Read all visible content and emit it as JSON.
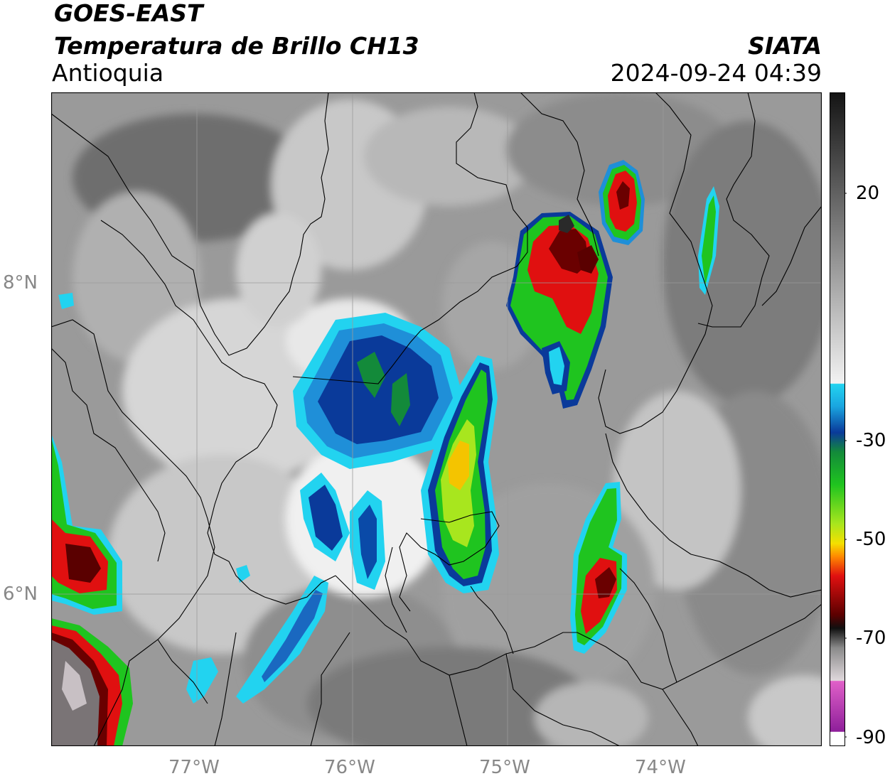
{
  "header": {
    "satellite": "GOES-EAST",
    "product": "Temperatura de Brillo CH13",
    "region": "Antioquia",
    "brand": "SIATA",
    "timestamp": "2024-09-24 04:39"
  },
  "axes": {
    "lat_labels": [
      "8°N",
      "6°N"
    ],
    "lon_labels": [
      "77°W",
      "76°W",
      "75°W",
      "74°W"
    ]
  },
  "colorbar": {
    "tick_labels": [
      "20",
      "-30",
      "-50",
      "-70",
      "-90"
    ],
    "colors": {
      "warm_top": "#141414",
      "warm_bottom": "#f2f2f2",
      "cyan": "#22d3f0",
      "blue": "#0a3a9a",
      "green": "#1fc41f",
      "yellow": "#f4e000",
      "orange": "#ff8a00",
      "red": "#e01010",
      "dark_red": "#5a0000",
      "grey_cold": "#b8b0b4",
      "magenta": "#d030c0",
      "purple": "#8e1f9a"
    }
  }
}
